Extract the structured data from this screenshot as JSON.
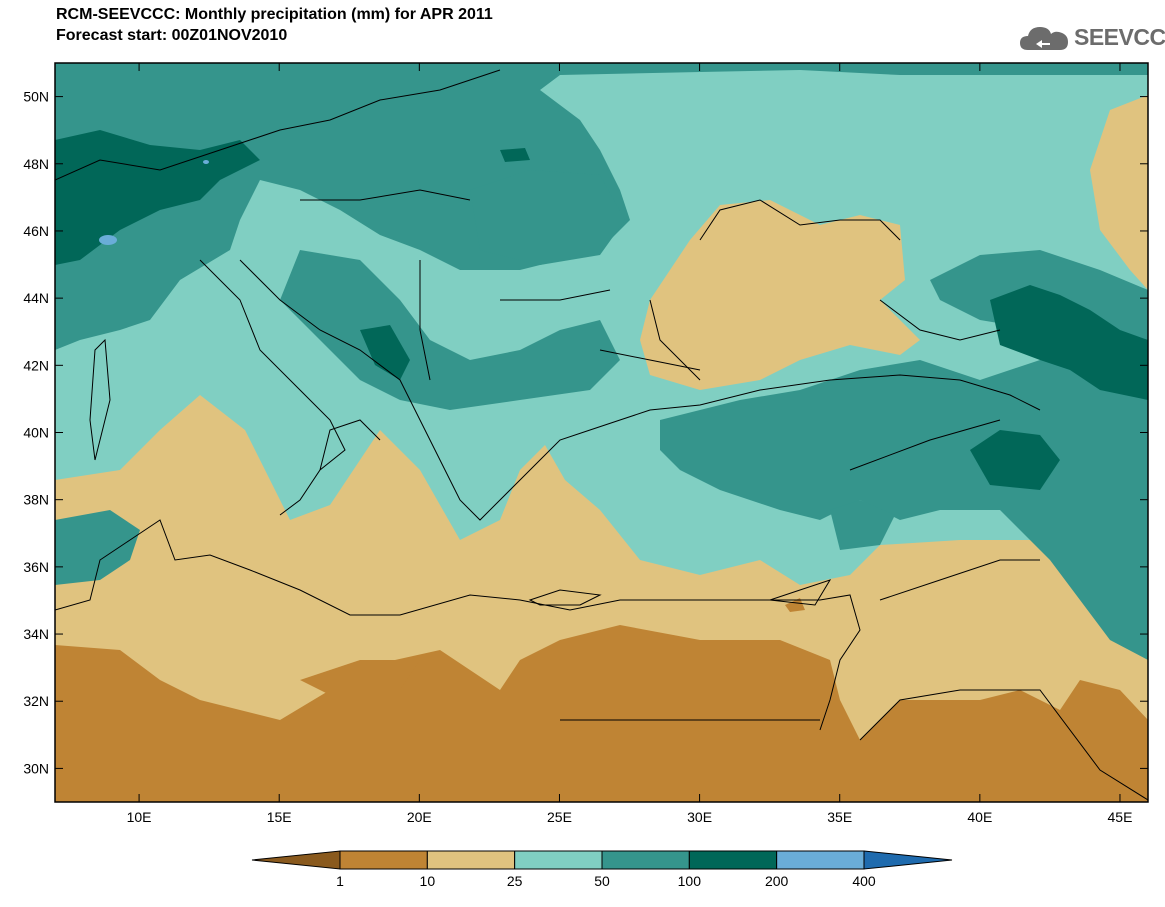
{
  "header": {
    "title_line1": "RCM-SEEVCCC: Monthly precipitation (mm) for APR 2011",
    "title_line2": "Forecast start: 00Z01NOV2010"
  },
  "logo": {
    "text": "SEEVCCC",
    "icon": "cloud-icon"
  },
  "map": {
    "lon_range": [
      7,
      46
    ],
    "lat_range": [
      29,
      51
    ],
    "lon_ticks": [
      "10E",
      "15E",
      "20E",
      "25E",
      "30E",
      "35E",
      "40E",
      "45E"
    ],
    "lat_ticks": [
      "50N",
      "48N",
      "46N",
      "44N",
      "42N",
      "40N",
      "38N",
      "36N",
      "34N",
      "32N",
      "30N"
    ]
  },
  "colorbar": {
    "labels": [
      "1",
      "10",
      "25",
      "50",
      "100",
      "200",
      "400"
    ],
    "colors": [
      "#8a5a1e",
      "#bf8434",
      "#e0c37f",
      "#80cfc2",
      "#35958c",
      "#016758",
      "#6aadd8",
      "#1f6bae"
    ]
  }
}
